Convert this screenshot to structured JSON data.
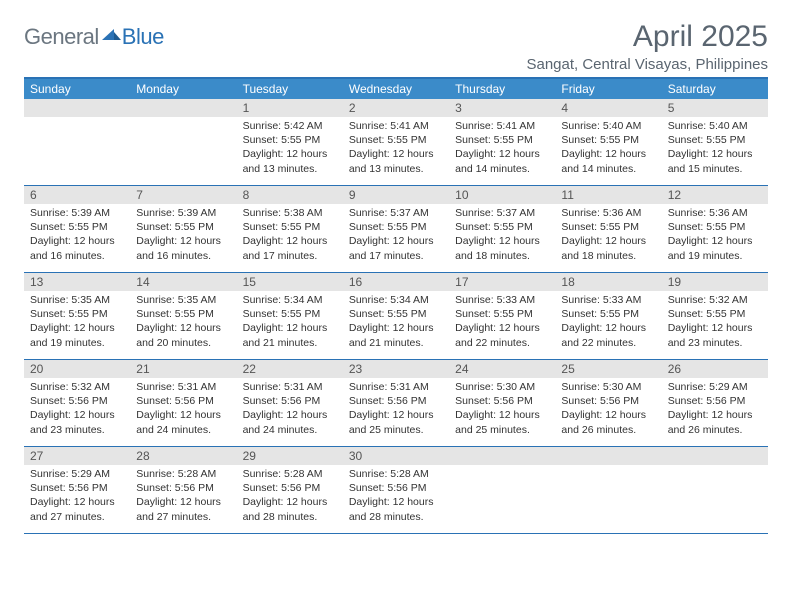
{
  "logo": {
    "general": "General",
    "blue": "Blue"
  },
  "title": "April 2025",
  "location": "Sangat, Central Visayas, Philippines",
  "colors": {
    "brand_blue": "#2a72b5",
    "header_blue": "#3b8bc9",
    "text_gray": "#5a6570",
    "cell_date_bg": "#e5e5e5"
  },
  "dayNames": [
    "Sunday",
    "Monday",
    "Tuesday",
    "Wednesday",
    "Thursday",
    "Friday",
    "Saturday"
  ],
  "weeks": [
    [
      {
        "date": "",
        "sunrise": "",
        "sunset": "",
        "daylight": ""
      },
      {
        "date": "",
        "sunrise": "",
        "sunset": "",
        "daylight": ""
      },
      {
        "date": "1",
        "sunrise": "Sunrise: 5:42 AM",
        "sunset": "Sunset: 5:55 PM",
        "daylight": "Daylight: 12 hours and 13 minutes."
      },
      {
        "date": "2",
        "sunrise": "Sunrise: 5:41 AM",
        "sunset": "Sunset: 5:55 PM",
        "daylight": "Daylight: 12 hours and 13 minutes."
      },
      {
        "date": "3",
        "sunrise": "Sunrise: 5:41 AM",
        "sunset": "Sunset: 5:55 PM",
        "daylight": "Daylight: 12 hours and 14 minutes."
      },
      {
        "date": "4",
        "sunrise": "Sunrise: 5:40 AM",
        "sunset": "Sunset: 5:55 PM",
        "daylight": "Daylight: 12 hours and 14 minutes."
      },
      {
        "date": "5",
        "sunrise": "Sunrise: 5:40 AM",
        "sunset": "Sunset: 5:55 PM",
        "daylight": "Daylight: 12 hours and 15 minutes."
      }
    ],
    [
      {
        "date": "6",
        "sunrise": "Sunrise: 5:39 AM",
        "sunset": "Sunset: 5:55 PM",
        "daylight": "Daylight: 12 hours and 16 minutes."
      },
      {
        "date": "7",
        "sunrise": "Sunrise: 5:39 AM",
        "sunset": "Sunset: 5:55 PM",
        "daylight": "Daylight: 12 hours and 16 minutes."
      },
      {
        "date": "8",
        "sunrise": "Sunrise: 5:38 AM",
        "sunset": "Sunset: 5:55 PM",
        "daylight": "Daylight: 12 hours and 17 minutes."
      },
      {
        "date": "9",
        "sunrise": "Sunrise: 5:37 AM",
        "sunset": "Sunset: 5:55 PM",
        "daylight": "Daylight: 12 hours and 17 minutes."
      },
      {
        "date": "10",
        "sunrise": "Sunrise: 5:37 AM",
        "sunset": "Sunset: 5:55 PM",
        "daylight": "Daylight: 12 hours and 18 minutes."
      },
      {
        "date": "11",
        "sunrise": "Sunrise: 5:36 AM",
        "sunset": "Sunset: 5:55 PM",
        "daylight": "Daylight: 12 hours and 18 minutes."
      },
      {
        "date": "12",
        "sunrise": "Sunrise: 5:36 AM",
        "sunset": "Sunset: 5:55 PM",
        "daylight": "Daylight: 12 hours and 19 minutes."
      }
    ],
    [
      {
        "date": "13",
        "sunrise": "Sunrise: 5:35 AM",
        "sunset": "Sunset: 5:55 PM",
        "daylight": "Daylight: 12 hours and 19 minutes."
      },
      {
        "date": "14",
        "sunrise": "Sunrise: 5:35 AM",
        "sunset": "Sunset: 5:55 PM",
        "daylight": "Daylight: 12 hours and 20 minutes."
      },
      {
        "date": "15",
        "sunrise": "Sunrise: 5:34 AM",
        "sunset": "Sunset: 5:55 PM",
        "daylight": "Daylight: 12 hours and 21 minutes."
      },
      {
        "date": "16",
        "sunrise": "Sunrise: 5:34 AM",
        "sunset": "Sunset: 5:55 PM",
        "daylight": "Daylight: 12 hours and 21 minutes."
      },
      {
        "date": "17",
        "sunrise": "Sunrise: 5:33 AM",
        "sunset": "Sunset: 5:55 PM",
        "daylight": "Daylight: 12 hours and 22 minutes."
      },
      {
        "date": "18",
        "sunrise": "Sunrise: 5:33 AM",
        "sunset": "Sunset: 5:55 PM",
        "daylight": "Daylight: 12 hours and 22 minutes."
      },
      {
        "date": "19",
        "sunrise": "Sunrise: 5:32 AM",
        "sunset": "Sunset: 5:55 PM",
        "daylight": "Daylight: 12 hours and 23 minutes."
      }
    ],
    [
      {
        "date": "20",
        "sunrise": "Sunrise: 5:32 AM",
        "sunset": "Sunset: 5:56 PM",
        "daylight": "Daylight: 12 hours and 23 minutes."
      },
      {
        "date": "21",
        "sunrise": "Sunrise: 5:31 AM",
        "sunset": "Sunset: 5:56 PM",
        "daylight": "Daylight: 12 hours and 24 minutes."
      },
      {
        "date": "22",
        "sunrise": "Sunrise: 5:31 AM",
        "sunset": "Sunset: 5:56 PM",
        "daylight": "Daylight: 12 hours and 24 minutes."
      },
      {
        "date": "23",
        "sunrise": "Sunrise: 5:31 AM",
        "sunset": "Sunset: 5:56 PM",
        "daylight": "Daylight: 12 hours and 25 minutes."
      },
      {
        "date": "24",
        "sunrise": "Sunrise: 5:30 AM",
        "sunset": "Sunset: 5:56 PM",
        "daylight": "Daylight: 12 hours and 25 minutes."
      },
      {
        "date": "25",
        "sunrise": "Sunrise: 5:30 AM",
        "sunset": "Sunset: 5:56 PM",
        "daylight": "Daylight: 12 hours and 26 minutes."
      },
      {
        "date": "26",
        "sunrise": "Sunrise: 5:29 AM",
        "sunset": "Sunset: 5:56 PM",
        "daylight": "Daylight: 12 hours and 26 minutes."
      }
    ],
    [
      {
        "date": "27",
        "sunrise": "Sunrise: 5:29 AM",
        "sunset": "Sunset: 5:56 PM",
        "daylight": "Daylight: 12 hours and 27 minutes."
      },
      {
        "date": "28",
        "sunrise": "Sunrise: 5:28 AM",
        "sunset": "Sunset: 5:56 PM",
        "daylight": "Daylight: 12 hours and 27 minutes."
      },
      {
        "date": "29",
        "sunrise": "Sunrise: 5:28 AM",
        "sunset": "Sunset: 5:56 PM",
        "daylight": "Daylight: 12 hours and 28 minutes."
      },
      {
        "date": "30",
        "sunrise": "Sunrise: 5:28 AM",
        "sunset": "Sunset: 5:56 PM",
        "daylight": "Daylight: 12 hours and 28 minutes."
      },
      {
        "date": "",
        "sunrise": "",
        "sunset": "",
        "daylight": ""
      },
      {
        "date": "",
        "sunrise": "",
        "sunset": "",
        "daylight": ""
      },
      {
        "date": "",
        "sunrise": "",
        "sunset": "",
        "daylight": ""
      }
    ]
  ]
}
